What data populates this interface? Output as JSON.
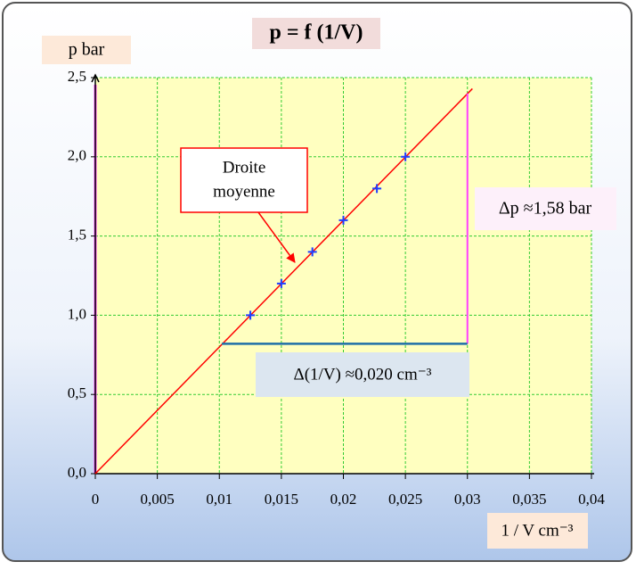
{
  "chart_data": {
    "type": "scatter",
    "title": "p = f (1/V)",
    "x_label": "1 / V cm⁻³",
    "y_label": "p bar",
    "x": [
      0.0125,
      0.015,
      0.0175,
      0.02,
      0.0227,
      0.025
    ],
    "series": [
      {
        "color": "#1f3fff",
        "values": [
          1.0,
          1.2,
          1.4,
          1.6,
          1.8,
          2.0
        ]
      }
    ],
    "fit": {
      "label": [
        "Droite",
        "moyenne"
      ],
      "color": "#ff0000",
      "x": [
        0,
        0.0304
      ],
      "values": [
        0,
        2.43
      ]
    },
    "delta_p": {
      "label": "Δp ≈1,58 bar",
      "color": "#ff40ff",
      "x": 0.03,
      "values": [
        0.82,
        2.4
      ]
    },
    "delta_x": {
      "label": "Δ(1/V) ≈0,020  cm⁻³",
      "color": "#1f6fa8",
      "x": [
        0.0102,
        0.03
      ],
      "value": 0.82
    },
    "xlim": [
      0,
      0.04
    ],
    "ylim": [
      0,
      2.5
    ],
    "xticks": [
      0,
      {
        "value": 0.005,
        "label": "0,005"
      },
      {
        "value": 0.01,
        "label": "0,01"
      },
      {
        "value": 0.015,
        "label": "0,015"
      },
      {
        "value": 0.02,
        "label": "0,02"
      },
      {
        "value": 0.025,
        "label": "0,025"
      },
      {
        "value": 0.03,
        "label": "0,03"
      },
      {
        "value": 0.035,
        "label": "0,035"
      },
      {
        "value": 0.04,
        "label": "0,04"
      }
    ],
    "yticks": [
      {
        "value": 0,
        "label": "0,0"
      },
      {
        "value": 0.5,
        "label": "0,5"
      },
      {
        "value": 1,
        "label": "1,0"
      },
      {
        "value": 1.5,
        "label": "1,5"
      },
      {
        "value": 2,
        "label": "2,0"
      },
      {
        "value": 2.5,
        "label": "2,5"
      }
    ],
    "grid": true
  }
}
